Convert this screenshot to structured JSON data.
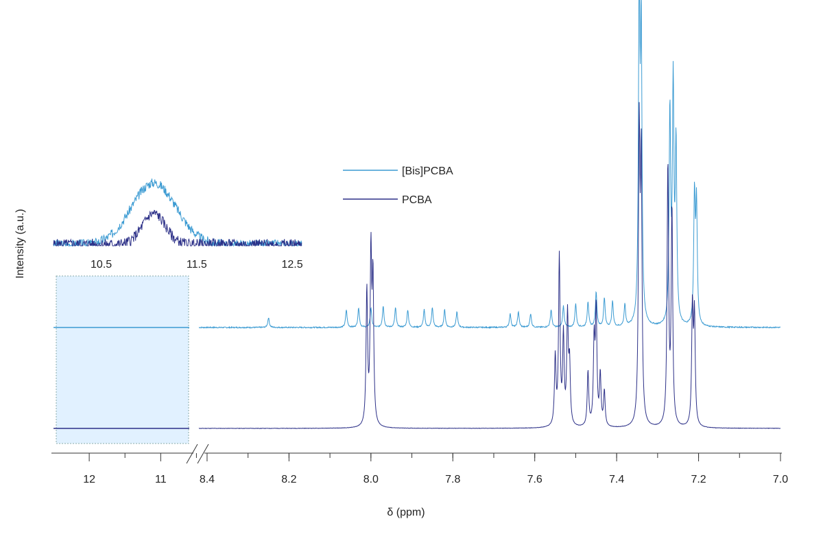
{
  "chart_data": [
    {
      "type": "line",
      "title": "",
      "xlabel": "δ (ppm)",
      "ylabel": "Intensity (a.u.)",
      "x_reversed": true,
      "axis_break": "between 10.6 and 8.4 ppm",
      "xlim_left_segment": [
        12.5,
        10.6
      ],
      "xlim_main_segment": [
        8.42,
        7.0
      ],
      "x_ticks": [
        "12",
        "11",
        "8.4",
        "8.2",
        "8.0",
        "7.8",
        "7.6",
        "7.4",
        "7.2",
        "7.0"
      ],
      "highlight_region_ppm": [
        12.5,
        10.6
      ],
      "legend_position": "top-center",
      "series": [
        {
          "name": "[Bis]PCBA",
          "color": "#3a9ad2",
          "peaks_ppm": [
            {
              "x": 8.25,
              "h": 0.05
            },
            {
              "x": 8.06,
              "h": 0.09
            },
            {
              "x": 8.03,
              "h": 0.1
            },
            {
              "x": 8.0,
              "h": 0.1
            },
            {
              "x": 7.97,
              "h": 0.11
            },
            {
              "x": 7.94,
              "h": 0.1
            },
            {
              "x": 7.91,
              "h": 0.09
            },
            {
              "x": 7.87,
              "h": 0.09
            },
            {
              "x": 7.85,
              "h": 0.1
            },
            {
              "x": 7.82,
              "h": 0.09
            },
            {
              "x": 7.79,
              "h": 0.08
            },
            {
              "x": 7.66,
              "h": 0.07
            },
            {
              "x": 7.64,
              "h": 0.08
            },
            {
              "x": 7.61,
              "h": 0.07
            },
            {
              "x": 7.56,
              "h": 0.09
            },
            {
              "x": 7.53,
              "h": 0.11
            },
            {
              "x": 7.5,
              "h": 0.12
            },
            {
              "x": 7.47,
              "h": 0.13
            },
            {
              "x": 7.45,
              "h": 0.18
            },
            {
              "x": 7.43,
              "h": 0.15
            },
            {
              "x": 7.41,
              "h": 0.13
            },
            {
              "x": 7.38,
              "h": 0.11
            },
            {
              "x": 7.345,
              "h": 1.63
            },
            {
              "x": 7.34,
              "h": 1.45
            },
            {
              "x": 7.27,
              "h": 1.08
            },
            {
              "x": 7.262,
              "h": 1.2
            },
            {
              "x": 7.255,
              "h": 0.9
            },
            {
              "x": 7.21,
              "h": 0.65
            },
            {
              "x": 7.205,
              "h": 0.6
            }
          ]
        },
        {
          "name": "PCBA",
          "color": "#2b2f87",
          "peaks_ppm": [
            {
              "x": 8.01,
              "h": 0.69
            },
            {
              "x": 8.0,
              "h": 0.86
            },
            {
              "x": 7.995,
              "h": 0.72
            },
            {
              "x": 7.55,
              "h": 0.35
            },
            {
              "x": 7.54,
              "h": 0.86
            },
            {
              "x": 7.53,
              "h": 0.45
            },
            {
              "x": 7.52,
              "h": 0.55
            },
            {
              "x": 7.515,
              "h": 0.3
            },
            {
              "x": 7.47,
              "h": 0.28
            },
            {
              "x": 7.455,
              "h": 0.42
            },
            {
              "x": 7.45,
              "h": 0.58
            },
            {
              "x": 7.44,
              "h": 0.26
            },
            {
              "x": 7.43,
              "h": 0.18
            },
            {
              "x": 7.345,
              "h": 1.45
            },
            {
              "x": 7.34,
              "h": 1.3
            },
            {
              "x": 7.275,
              "h": 1.33
            },
            {
              "x": 7.265,
              "h": 1.1
            },
            {
              "x": 7.215,
              "h": 0.6
            },
            {
              "x": 7.21,
              "h": 0.55
            }
          ]
        }
      ]
    },
    {
      "type": "line",
      "title": "",
      "xlim": [
        10.0,
        12.6
      ],
      "x_ticks": [
        "10.5",
        "11.5",
        "12.5"
      ],
      "series": [
        {
          "name": "[Bis]PCBA",
          "color": "#3a9ad2",
          "peak_center": 11.05,
          "peak_height": 0.9,
          "peak_width": 0.33
        },
        {
          "name": "PCBA",
          "color": "#2b2f87",
          "peak_center": 11.05,
          "peak_height": 0.45,
          "peak_width": 0.17
        }
      ]
    }
  ],
  "legend": {
    "items": [
      {
        "label": "[Bis]PCBA",
        "color": "#3a9ad2"
      },
      {
        "label": "PCBA",
        "color": "#2b2f87"
      }
    ]
  }
}
